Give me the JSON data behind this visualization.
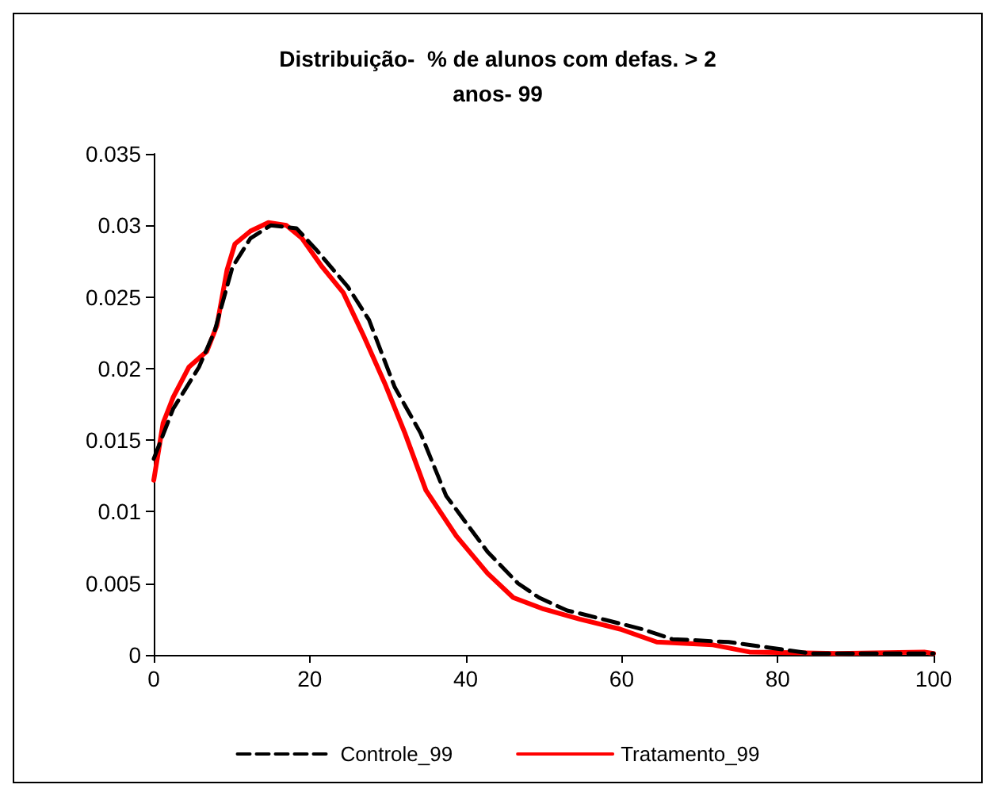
{
  "chart_data": {
    "type": "line",
    "title": "Distribuição-  % de alunos com defas. > 2\nanos- 99",
    "xlim": [
      0,
      100
    ],
    "xticks": [
      0,
      20,
      40,
      60,
      80,
      100
    ],
    "ylim": [
      0,
      0.035
    ],
    "yticks": [
      0,
      0.005,
      0.01,
      0.015,
      0.02,
      0.025,
      0.03,
      0.035
    ],
    "grid": false,
    "legend": "bottom",
    "marker": "none",
    "series": [
      {
        "name": "Controle_99",
        "color": "#000000",
        "line_style": "dashed",
        "x": [
          0,
          2.5,
          5.8,
          7.8,
          10.1,
          12.4,
          15,
          18.3,
          21,
          24.9,
          27.6,
          30.9,
          34.2,
          37.5,
          42.8,
          46.7,
          49.4,
          53,
          54.6,
          62.6,
          66.5,
          73.7,
          79,
          84.3,
          98.8,
          100
        ],
        "values": [
          0.0137,
          0.0172,
          0.0201,
          0.0226,
          0.0271,
          0.0291,
          0.03,
          0.0298,
          0.0282,
          0.0257,
          0.0234,
          0.0187,
          0.0155,
          0.0111,
          0.0072,
          0.005,
          0.004,
          0.0031,
          0.0029,
          0.0018,
          0.0011,
          0.0009,
          0.0005,
          0.0001,
          0.0001,
          0.0001
        ]
      },
      {
        "name": "Tratamento_99",
        "color": "#ff0000",
        "line_style": "solid",
        "x": [
          0,
          1.2,
          2.5,
          4.5,
          6.8,
          8.1,
          9.4,
          10.4,
          12.4,
          14.7,
          17,
          19,
          21.6,
          24.3,
          26.9,
          29.6,
          32.2,
          34.9,
          38.8,
          42.8,
          46.1,
          50,
          54.6,
          59.8,
          64.5,
          71.7,
          76.4,
          87.6,
          98.8,
          100
        ],
        "values": [
          0.0122,
          0.0162,
          0.018,
          0.0201,
          0.0212,
          0.023,
          0.0269,
          0.0287,
          0.0296,
          0.0302,
          0.03,
          0.0291,
          0.0271,
          0.0253,
          0.0223,
          0.019,
          0.0155,
          0.0115,
          0.0083,
          0.0057,
          0.004,
          0.0032,
          0.0025,
          0.0018,
          0.0009,
          0.0007,
          0.0002,
          0.0001,
          0.0002,
          0.0001
        ]
      }
    ]
  }
}
